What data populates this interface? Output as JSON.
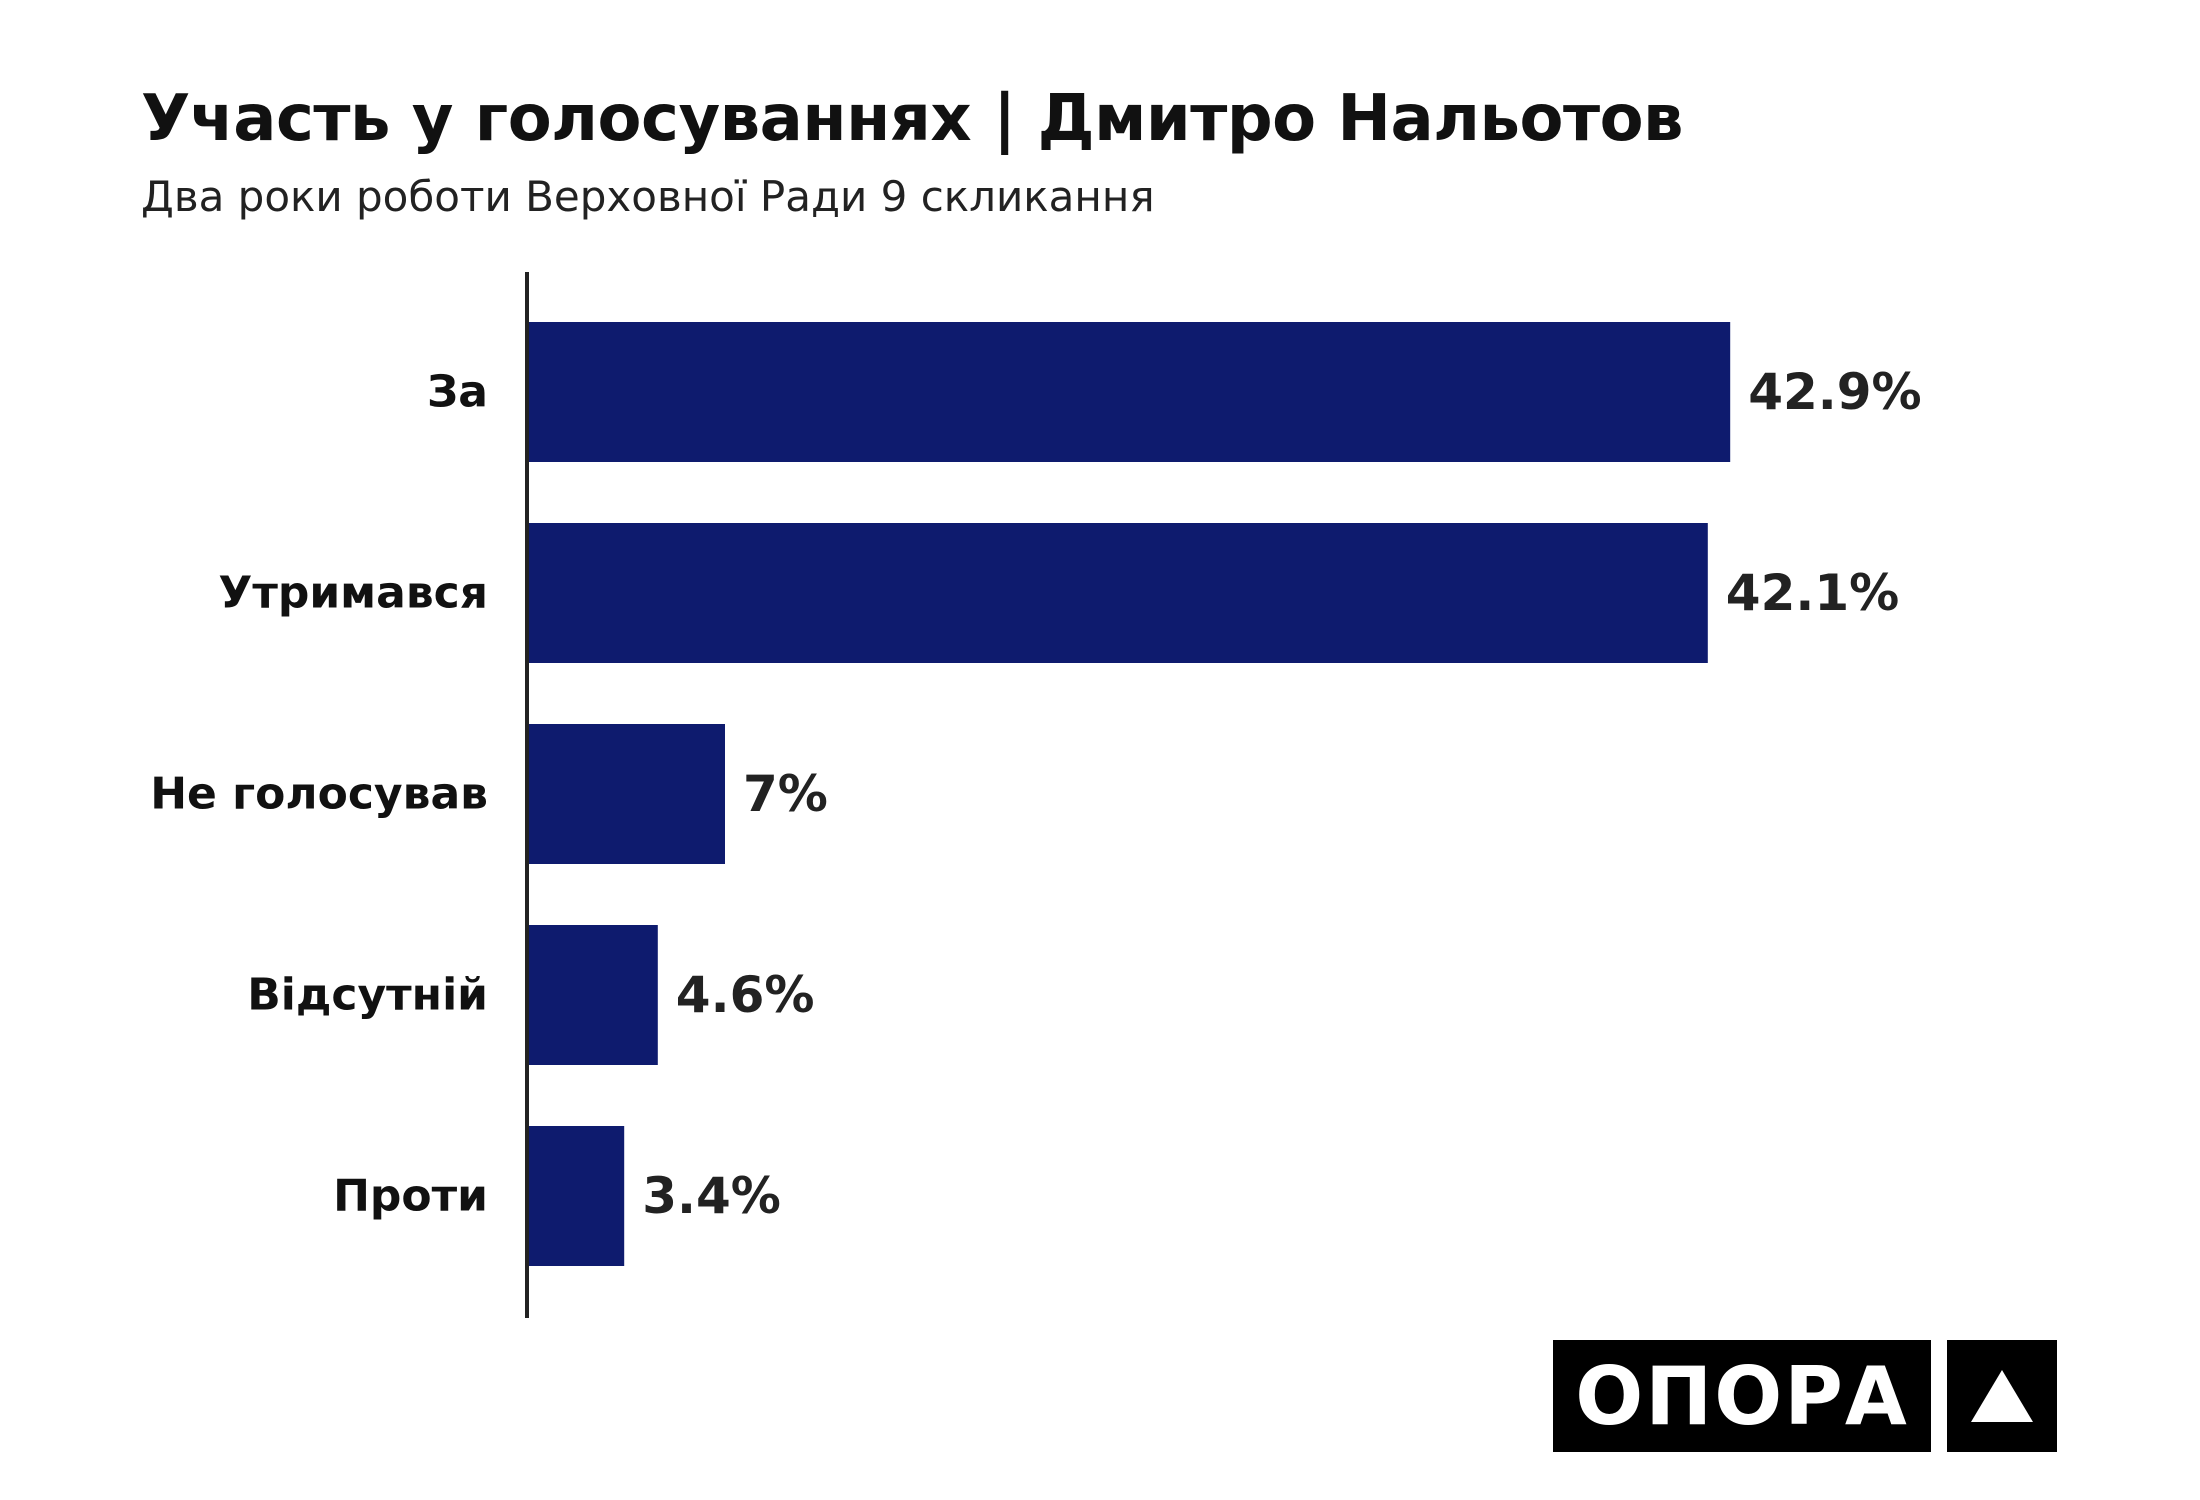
{
  "header": {
    "title": "Участь у голосуваннях | Дмитро Нальотов",
    "subtitle": "Два роки роботи Верховної Ради 9 скликання"
  },
  "chart_data": {
    "type": "bar",
    "orientation": "horizontal",
    "categories": [
      "За",
      "Утримався",
      "Не голосував",
      "Відсутній",
      "Проти"
    ],
    "values": [
      42.9,
      42.1,
      7,
      4.6,
      3.4
    ],
    "value_labels": [
      "42.9%",
      "42.1%",
      "7%",
      "4.6%",
      "3.4%"
    ],
    "xlim": [
      0,
      60
    ],
    "grid": false,
    "bar_color": "#0e1b6e"
  },
  "logo": {
    "wordmark": "ОПОРА",
    "icon": "triangle-up-icon"
  }
}
